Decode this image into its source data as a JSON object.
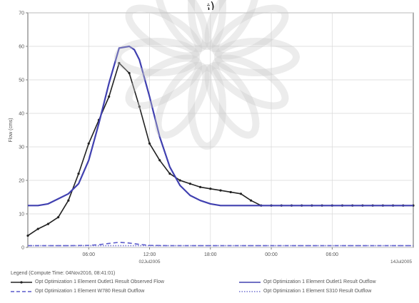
{
  "caption": {
    "text": "ژ)"
  },
  "chart_data": {
    "type": "line",
    "ylabel": "Flow (cms)",
    "ylim": [
      0,
      70
    ],
    "yticks": [
      "0",
      "10",
      "20",
      "30",
      "40",
      "50",
      "60",
      "70"
    ],
    "yticks_values": [
      0,
      10,
      20,
      30,
      40,
      50,
      60,
      70
    ],
    "xlim": [
      0,
      38
    ],
    "xtick_values": [
      6,
      12,
      18,
      24,
      30
    ],
    "xticks": [
      "06:00",
      "12:00",
      "18:00",
      "00:00",
      "06:00"
    ],
    "date_labels": [
      "02Jul2005",
      "14Jul2005"
    ],
    "grid": true,
    "series": [
      {
        "name": "Opt Optimization 1 Element Outlet1 Result Observed Flow",
        "color": "#222222",
        "style": "solid-markers",
        "x": [
          0,
          1,
          2,
          3,
          4,
          5,
          6,
          7,
          8,
          9,
          10,
          11,
          12,
          13,
          14,
          15,
          16,
          17,
          18,
          19,
          20,
          21,
          22,
          23,
          24,
          25,
          26,
          27,
          28,
          29,
          30,
          31,
          32,
          33,
          34,
          35,
          36,
          37,
          38
        ],
        "values": [
          3.5,
          5.5,
          7,
          9,
          14,
          22,
          31,
          38,
          45,
          55,
          52,
          42,
          31,
          26,
          22,
          20,
          19,
          18,
          17.5,
          17,
          16.5,
          16,
          14,
          12.5,
          12.5,
          12.5,
          12.5,
          12.5,
          12.5,
          12.5,
          12.5,
          12.5,
          12.5,
          12.5,
          12.5,
          12.5,
          12.5,
          12.5,
          12.5
        ]
      },
      {
        "name": "Opt Optimization 1 Element W780 Result Outflow",
        "color": "#5a5acc",
        "style": "dash",
        "x": [
          0,
          4,
          6,
          7,
          8,
          9,
          10,
          11,
          12,
          14,
          18,
          24,
          30,
          38
        ],
        "values": [
          0.5,
          0.5,
          0.6,
          0.8,
          1.2,
          1.5,
          1.3,
          0.9,
          0.6,
          0.5,
          0.5,
          0.5,
          0.5,
          0.5
        ]
      },
      {
        "name": "Opt Optimization 1 Element Outlet1 Result Outflow",
        "color": "#4040b0",
        "style": "solid",
        "x": [
          0,
          1,
          2,
          3,
          4,
          5,
          6,
          7,
          8,
          9,
          10,
          10.5,
          11,
          12,
          13,
          14,
          15,
          16,
          17,
          18,
          19,
          20,
          21,
          22,
          24,
          26,
          38
        ],
        "values": [
          12.5,
          12.5,
          13,
          14.5,
          16,
          19,
          26,
          37,
          49,
          59.5,
          60,
          59,
          56,
          45,
          33,
          24,
          18.5,
          15.5,
          14,
          13,
          12.5,
          12.5,
          12.5,
          12.5,
          12.5,
          12.5,
          12.5
        ]
      },
      {
        "name": "Opt Optimization 1 Element S310 Result Outflow",
        "color": "#7070d0",
        "style": "dot",
        "x": [
          0,
          38
        ],
        "values": [
          0.5,
          0.5
        ]
      }
    ]
  },
  "legend": {
    "header": "Legend (Compute Time: 04Nov2016, 08:41:01)"
  },
  "colors": {
    "background": "#ffffff",
    "grid": "#d8d8d8",
    "axis": "#666666",
    "watermark": "#c8c8c8"
  }
}
